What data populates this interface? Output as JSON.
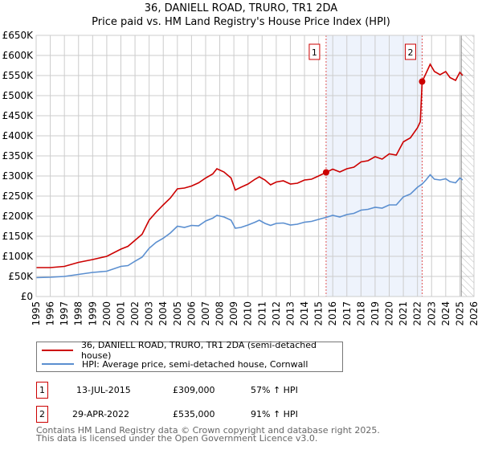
{
  "chart_data": {
    "type": "line",
    "title": "36, DANIELL ROAD, TRURO, TR1 2DA",
    "subtitle": "Price paid vs. HM Land Registry's House Price Index (HPI)",
    "xlim": [
      1995,
      2026
    ],
    "ylim": [
      0,
      650000
    ],
    "y_ticks": [
      {
        "v": 0,
        "label": "£0"
      },
      {
        "v": 50000,
        "label": "£50K"
      },
      {
        "v": 100000,
        "label": "£100K"
      },
      {
        "v": 150000,
        "label": "£150K"
      },
      {
        "v": 200000,
        "label": "£200K"
      },
      {
        "v": 250000,
        "label": "£250K"
      },
      {
        "v": 300000,
        "label": "£300K"
      },
      {
        "v": 350000,
        "label": "£350K"
      },
      {
        "v": 400000,
        "label": "£400K"
      },
      {
        "v": 450000,
        "label": "£450K"
      },
      {
        "v": 500000,
        "label": "£500K"
      },
      {
        "v": 550000,
        "label": "£550K"
      },
      {
        "v": 600000,
        "label": "£600K"
      },
      {
        "v": 650000,
        "label": "£650K"
      }
    ],
    "x_ticks": [
      "1995",
      "1996",
      "1997",
      "1998",
      "1999",
      "2000",
      "2001",
      "2002",
      "2003",
      "2004",
      "2005",
      "2006",
      "2007",
      "2008",
      "2009",
      "2010",
      "2011",
      "2012",
      "2013",
      "2014",
      "2015",
      "2016",
      "2017",
      "2018",
      "2019",
      "2020",
      "2021",
      "2022",
      "2023",
      "2024",
      "2025",
      "2026"
    ],
    "grid": true,
    "series": [
      {
        "name": "36, DANIELL ROAD, TRURO, TR1 2DA (semi-detached house)",
        "color": "#cc0000",
        "x": [
          1995,
          1996,
          1997,
          1998,
          1999,
          2000,
          2001,
          2001.5,
          2002,
          2002.5,
          2003,
          2003.5,
          2004,
          2004.5,
          2005,
          2005.5,
          2006,
          2006.5,
          2007,
          2007.5,
          2007.8,
          2008.3,
          2008.8,
          2009.1,
          2009.5,
          2010,
          2010.5,
          2010.8,
          2011.2,
          2011.6,
          2012,
          2012.5,
          2013,
          2013.5,
          2014,
          2014.5,
          2015,
          2015.53,
          2016,
          2016.5,
          2017,
          2017.5,
          2018,
          2018.5,
          2019,
          2019.5,
          2020,
          2020.5,
          2021,
          2021.5,
          2022,
          2022.2,
          2022.33,
          2022.6,
          2022.9,
          2023.2,
          2023.6,
          2024,
          2024.3,
          2024.7,
          2025,
          2025.2
        ],
        "y": [
          72,
          72,
          75,
          85,
          92,
          100,
          118,
          125,
          140,
          155,
          190,
          210,
          228,
          245,
          268,
          270,
          275,
          283,
          295,
          305,
          318,
          310,
          295,
          265,
          272,
          280,
          292,
          298,
          290,
          278,
          285,
          288,
          280,
          282,
          290,
          292,
          300,
          309,
          317,
          310,
          318,
          322,
          335,
          338,
          348,
          342,
          355,
          352,
          385,
          395,
          420,
          435,
          535,
          555,
          578,
          560,
          552,
          560,
          545,
          538,
          558,
          550
        ]
      },
      {
        "name": "HPI: Average price, semi-detached house, Cornwall",
        "color": "#5b8fd0",
        "x": [
          1995,
          1996,
          1997,
          1998,
          1999,
          2000,
          2001,
          2001.5,
          2002,
          2002.5,
          2003,
          2003.5,
          2004,
          2004.5,
          2005,
          2005.5,
          2006,
          2006.5,
          2007,
          2007.5,
          2007.8,
          2008.3,
          2008.8,
          2009.1,
          2009.5,
          2010,
          2010.5,
          2010.8,
          2011.2,
          2011.6,
          2012,
          2012.5,
          2013,
          2013.5,
          2014,
          2014.5,
          2015,
          2015.53,
          2016,
          2016.5,
          2017,
          2017.5,
          2018,
          2018.5,
          2019,
          2019.5,
          2020,
          2020.5,
          2021,
          2021.5,
          2022,
          2022.33,
          2022.6,
          2022.9,
          2023.2,
          2023.6,
          2024,
          2024.3,
          2024.7,
          2025,
          2025.2
        ],
        "y": [
          47,
          48,
          50,
          55,
          60,
          63,
          75,
          77,
          88,
          98,
          120,
          135,
          145,
          158,
          175,
          172,
          177,
          176,
          188,
          195,
          202,
          198,
          190,
          170,
          172,
          178,
          185,
          190,
          182,
          177,
          182,
          183,
          178,
          180,
          185,
          187,
          192,
          197,
          202,
          198,
          204,
          207,
          215,
          217,
          222,
          220,
          228,
          228,
          248,
          255,
          272,
          280,
          290,
          303,
          292,
          290,
          293,
          286,
          283,
          295,
          290
        ]
      }
    ],
    "y_units": "thousands GBP",
    "sales": [
      {
        "id": "1",
        "x": 2015.53,
        "y": 309,
        "date": "13-JUL-2015",
        "price": "£309,000",
        "hpi": "57% ↑ HPI"
      },
      {
        "id": "2",
        "x": 2022.33,
        "y": 535,
        "date": "29-APR-2022",
        "price": "£535,000",
        "hpi": "91% ↑ HPI"
      }
    ],
    "forecast_start": 2025.1,
    "legend_placement": "below"
  },
  "footer": {
    "line1": "Contains HM Land Registry data © Crown copyright and database right 2025.",
    "line2": "This data is licensed under the Open Government Licence v3.0."
  }
}
